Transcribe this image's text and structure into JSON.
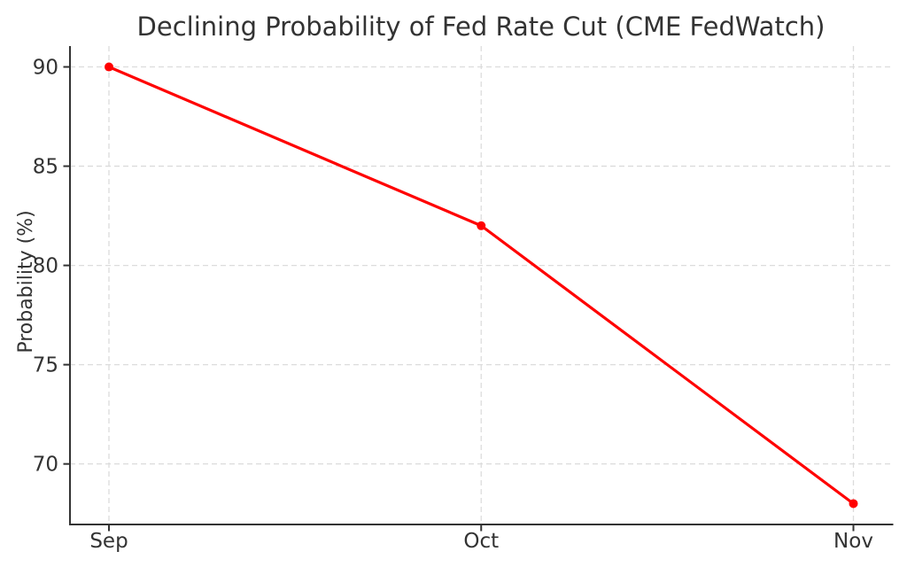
{
  "figure": {
    "title": "Declining Probability of Fed Rate Cut (CME FedWatch)"
  },
  "chart_data": {
    "type": "line",
    "title": "Declining Probability of Fed Rate Cut (CME FedWatch)",
    "categories": [
      "Sep",
      "Oct",
      "Nov"
    ],
    "values": [
      90,
      82,
      68
    ],
    "xlabel": "",
    "ylabel": "Probability (%)",
    "yticks": [
      70,
      75,
      80,
      85,
      90
    ],
    "ylim": [
      66.95,
      91.05
    ],
    "grid": true,
    "grid_style": "dashed",
    "legend": "none",
    "line_color": "#ff0000",
    "marker_color": "#ff0000",
    "marker": "circle",
    "text_color": "#333333",
    "grid_color": "#dcdcdc",
    "spine_color": "#333333",
    "background_color": "#ffffff"
  }
}
